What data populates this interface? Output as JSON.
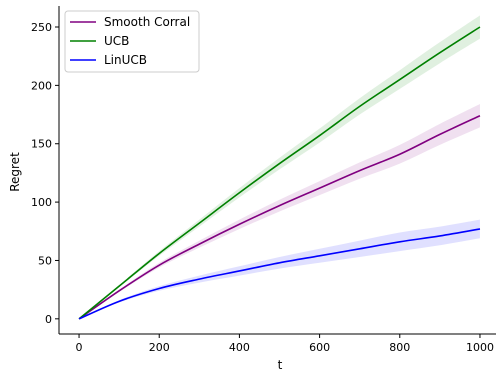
{
  "chart_data": {
    "type": "line",
    "title": "",
    "xlabel": "t",
    "ylabel": "Regret",
    "xlim": [
      -50,
      1040
    ],
    "ylim": [
      -13,
      268
    ],
    "xticks": [
      0,
      200,
      400,
      600,
      800,
      1000
    ],
    "yticks": [
      0,
      50,
      100,
      150,
      200,
      250
    ],
    "grid": false,
    "legend_position": "top-left",
    "series": [
      {
        "name": "Smooth Corral",
        "color": "#800080",
        "x": [
          0,
          100,
          200,
          300,
          400,
          500,
          600,
          700,
          800,
          900,
          1000
        ],
        "y": [
          0,
          24,
          46,
          64,
          81,
          97,
          112,
          127,
          141,
          158,
          174
        ],
        "lower": [
          0,
          23,
          44,
          61,
          77,
          92,
          106,
          120,
          133,
          149,
          164
        ],
        "upper": [
          0,
          25,
          48,
          67,
          85,
          102,
          118,
          134,
          149,
          167,
          184
        ]
      },
      {
        "name": "UCB",
        "color": "#008000",
        "x": [
          0,
          100,
          200,
          300,
          400,
          500,
          600,
          700,
          800,
          900,
          1000
        ],
        "y": [
          0,
          28,
          56,
          82,
          108,
          133,
          157,
          182,
          205,
          228,
          250
        ],
        "lower": [
          0,
          27,
          54,
          79,
          104,
          128,
          151,
          175,
          197,
          219,
          240
        ],
        "upper": [
          0,
          29,
          58,
          85,
          112,
          138,
          163,
          189,
          213,
          237,
          260
        ]
      },
      {
        "name": "LinUCB",
        "color": "#0000ff",
        "x": [
          0,
          100,
          200,
          300,
          400,
          500,
          600,
          700,
          800,
          900,
          1000
        ],
        "y": [
          0,
          15,
          26,
          34,
          41,
          48,
          54,
          60,
          66,
          71,
          77
        ],
        "lower": [
          0,
          14,
          24,
          31,
          37,
          43,
          48,
          53,
          58,
          63,
          69
        ],
        "upper": [
          0,
          16,
          28,
          37,
          45,
          53,
          60,
          67,
          74,
          79,
          85
        ]
      }
    ]
  }
}
